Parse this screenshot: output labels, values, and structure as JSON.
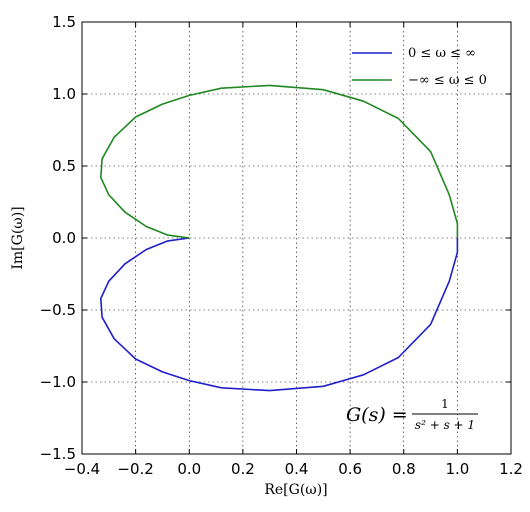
{
  "chart_data": {
    "type": "line",
    "title": "",
    "xlabel": "Re[G(ω)]",
    "ylabel": "Im[G(ω)]",
    "xlim": [
      -0.4,
      1.2
    ],
    "ylim": [
      -1.5,
      1.5
    ],
    "x_ticks": [
      -0.4,
      -0.2,
      0.0,
      0.2,
      0.4,
      0.6,
      0.8,
      1.0,
      1.2
    ],
    "x_tick_labels": [
      "−0.4",
      "−0.2",
      "0.0",
      "0.2",
      "0.4",
      "0.6",
      "0.8",
      "1.0",
      "1.2"
    ],
    "y_ticks": [
      -1.5,
      -1.0,
      -0.5,
      0.0,
      0.5,
      1.0,
      1.5
    ],
    "y_tick_labels": [
      "−1.5",
      "−1.0",
      "−0.5",
      "0.0",
      "0.5",
      "1.0",
      "1.5"
    ],
    "grid": true,
    "legend_position": "top-right",
    "annotation": {
      "lhs": "G(s) =",
      "numerator": "1",
      "denominator": "s² + s + 1"
    },
    "series": [
      {
        "name": "0 ≤ ω ≤ ∞",
        "color": "#1f1fcc",
        "x": [
          1.0,
          1.0,
          0.97,
          0.9,
          0.78,
          0.65,
          0.5,
          0.3,
          0.12,
          0.0,
          -0.1,
          -0.2,
          -0.28,
          -0.325,
          -0.33,
          -0.3,
          -0.24,
          -0.16,
          -0.08,
          0.0
        ],
        "y": [
          0.0,
          -0.1,
          -0.3,
          -0.6,
          -0.83,
          -0.95,
          -1.03,
          -1.06,
          -1.04,
          -0.99,
          -0.93,
          -0.84,
          -0.7,
          -0.55,
          -0.42,
          -0.3,
          -0.18,
          -0.08,
          -0.02,
          0.0
        ]
      },
      {
        "name": "−∞ ≤ ω ≤ 0",
        "color": "#228822",
        "x": [
          1.0,
          1.0,
          0.97,
          0.9,
          0.78,
          0.65,
          0.5,
          0.3,
          0.12,
          0.0,
          -0.1,
          -0.2,
          -0.28,
          -0.325,
          -0.33,
          -0.3,
          -0.24,
          -0.16,
          -0.08,
          0.0
        ],
        "y": [
          0.0,
          0.1,
          0.3,
          0.6,
          0.83,
          0.95,
          1.03,
          1.06,
          1.04,
          0.99,
          0.93,
          0.84,
          0.7,
          0.55,
          0.42,
          0.3,
          0.18,
          0.08,
          0.02,
          0.0
        ]
      }
    ]
  }
}
